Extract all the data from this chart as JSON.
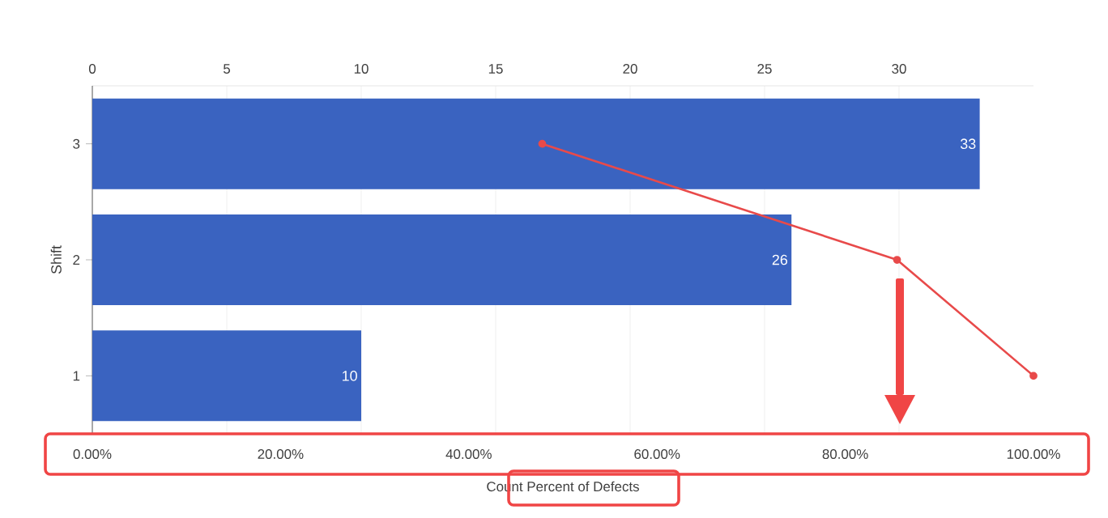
{
  "chart_data": {
    "type": "bar",
    "orientation": "horizontal",
    "categories": [
      "3",
      "2",
      "1"
    ],
    "series": [
      {
        "axis": "x2",
        "color": "#3a63c0",
        "values": [
          33,
          26,
          10
        ],
        "value_labels": [
          "33",
          "26",
          "10"
        ]
      },
      {
        "type": "line",
        "color": "#e84a4a",
        "marker": "circle",
        "line_style": "solid",
        "values": [
          47.8,
          85.5,
          100
        ]
      }
    ],
    "ylabel": "Shift",
    "x2label": "Count",
    "xlabel": "Percent of Defects",
    "xlim": [
      0,
      100
    ],
    "xticks": [
      {
        "value": 0,
        "label": "0.00%"
      },
      {
        "value": 20,
        "label": "20.00%"
      },
      {
        "value": 40,
        "label": "40.00%"
      },
      {
        "value": 60,
        "label": "60.00%"
      },
      {
        "value": 80,
        "label": "80.00%"
      },
      {
        "value": 100,
        "label": "100.00%"
      }
    ],
    "x2lim": [
      0,
      35
    ],
    "x2ticks": [
      0,
      5,
      10,
      15,
      20,
      25,
      30
    ],
    "grid": "x"
  }
}
